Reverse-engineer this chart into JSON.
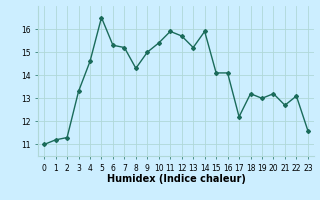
{
  "x": [
    0,
    1,
    2,
    3,
    4,
    5,
    6,
    7,
    8,
    9,
    10,
    11,
    12,
    13,
    14,
    15,
    16,
    17,
    18,
    19,
    20,
    21,
    22,
    23
  ],
  "y": [
    11.0,
    11.2,
    11.3,
    13.3,
    14.6,
    16.5,
    15.3,
    15.2,
    14.3,
    15.0,
    15.4,
    15.9,
    15.7,
    15.2,
    15.9,
    14.1,
    14.1,
    12.2,
    13.2,
    13.0,
    13.2,
    12.7,
    13.1,
    11.6
  ],
  "line_color": "#1a6b5a",
  "marker": "D",
  "marker_size": 2,
  "linewidth": 1.0,
  "xlabel": "Humidex (Indice chaleur)",
  "xlabel_fontsize": 7,
  "bg_color": "#cceeff",
  "grid_color": "#b0d8d8",
  "ylim": [
    10.5,
    17.0
  ],
  "xlim": [
    -0.5,
    23.5
  ],
  "yticks": [
    11,
    12,
    13,
    14,
    15,
    16
  ],
  "xtick_labels": [
    "0",
    "1",
    "2",
    "3",
    "4",
    "5",
    "6",
    "7",
    "8",
    "9",
    "10",
    "11",
    "12",
    "13",
    "14",
    "15",
    "16",
    "17",
    "18",
    "19",
    "20",
    "21",
    "22",
    "23"
  ],
  "tick_fontsize": 5.5
}
